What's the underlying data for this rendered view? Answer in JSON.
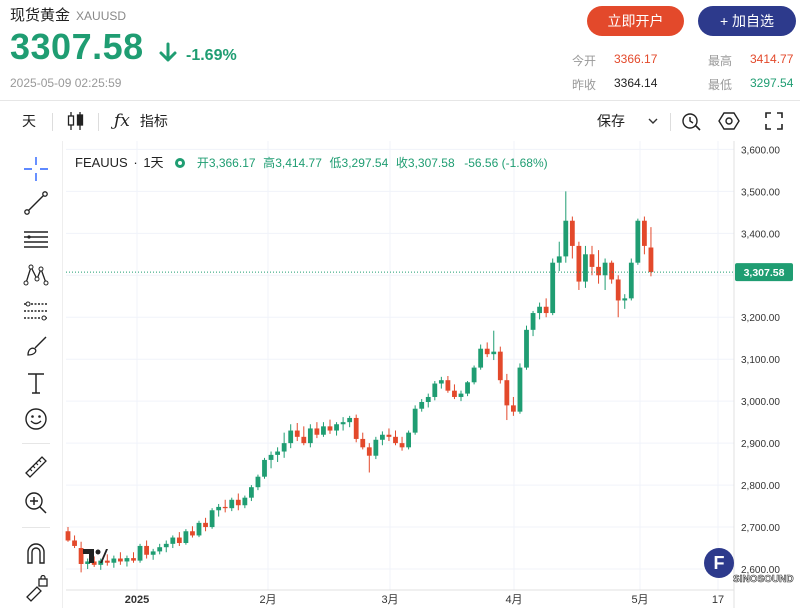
{
  "header": {
    "title": "现货黄金",
    "symbol": "XAUUSD",
    "price": "3307.58",
    "change_pct": "-1.69%",
    "timestamp": "2025-05-09 02:25:59",
    "open_account_label": "立即开户",
    "add_watchlist_label": "+ 加自选",
    "stats": {
      "today_open_label": "今开",
      "today_open": "3366.17",
      "prev_close_label": "昨收",
      "prev_close": "3364.14",
      "high_label": "最高",
      "high": "3414.77",
      "low_label": "最低",
      "low": "3297.54"
    },
    "colors": {
      "up": "#1f9d72",
      "down": "#e3492b",
      "accent": "#2d3a8c"
    }
  },
  "toolbar": {
    "interval_label": "天",
    "indicator_label": "指标",
    "save_label": "保存",
    "icons": [
      "candles-icon",
      "fx-icon",
      "chevron-down-icon",
      "replay-icon",
      "settings-icon",
      "fullscreen-icon"
    ]
  },
  "legend": {
    "symbol": "FEAUUS",
    "interval": "1天",
    "open_label": "开",
    "open": "3,366.17",
    "high_label": "高",
    "high": "3,414.77",
    "low_label": "低",
    "low": "3,297.54",
    "close_label": "收",
    "close": "3,307.58",
    "change": "-56.56 (-1.68%)"
  },
  "sidebar_icons": [
    "crosshair-icon",
    "trend-line-icon",
    "horizontal-lines-icon",
    "pattern-icon",
    "fib-icon",
    "brush-icon",
    "text-icon",
    "emoji-icon",
    "ruler-icon",
    "zoom-in-icon",
    "magnet-icon",
    "lock-draw-icon"
  ],
  "watermark": "SINOSOUND",
  "chart_data": {
    "type": "candlestick",
    "title": "",
    "last_price_label": "3,307.58",
    "ylim": [
      2550,
      3620
    ],
    "y_ticks": [
      "3,600.00",
      "3,500.00",
      "3,400.00",
      "3,300.00",
      "3,200.00",
      "3,100.00",
      "3,000.00",
      "2,900.00",
      "2,800.00",
      "2,700.00",
      "2,600.00"
    ],
    "x_ticks": [
      "2025",
      "2月",
      "3月",
      "4月",
      "5月",
      "17"
    ],
    "series": [
      {
        "o": 2690,
        "h": 2700,
        "l": 2665,
        "c": 2668
      },
      {
        "o": 2668,
        "h": 2680,
        "l": 2650,
        "c": 2655
      },
      {
        "o": 2650,
        "h": 2665,
        "l": 2592,
        "c": 2612
      },
      {
        "o": 2612,
        "h": 2625,
        "l": 2600,
        "c": 2618
      },
      {
        "o": 2618,
        "h": 2630,
        "l": 2605,
        "c": 2610
      },
      {
        "o": 2610,
        "h": 2625,
        "l": 2598,
        "c": 2620
      },
      {
        "o": 2620,
        "h": 2635,
        "l": 2608,
        "c": 2615
      },
      {
        "o": 2615,
        "h": 2632,
        "l": 2603,
        "c": 2625
      },
      {
        "o": 2625,
        "h": 2640,
        "l": 2610,
        "c": 2618
      },
      {
        "o": 2618,
        "h": 2632,
        "l": 2606,
        "c": 2626
      },
      {
        "o": 2626,
        "h": 2640,
        "l": 2615,
        "c": 2620
      },
      {
        "o": 2620,
        "h": 2660,
        "l": 2615,
        "c": 2655
      },
      {
        "o": 2655,
        "h": 2668,
        "l": 2625,
        "c": 2634
      },
      {
        "o": 2634,
        "h": 2648,
        "l": 2622,
        "c": 2642
      },
      {
        "o": 2642,
        "h": 2660,
        "l": 2635,
        "c": 2652
      },
      {
        "o": 2652,
        "h": 2668,
        "l": 2640,
        "c": 2660
      },
      {
        "o": 2660,
        "h": 2680,
        "l": 2650,
        "c": 2675
      },
      {
        "o": 2675,
        "h": 2688,
        "l": 2655,
        "c": 2662
      },
      {
        "o": 2662,
        "h": 2695,
        "l": 2658,
        "c": 2690
      },
      {
        "o": 2690,
        "h": 2702,
        "l": 2675,
        "c": 2680
      },
      {
        "o": 2680,
        "h": 2715,
        "l": 2676,
        "c": 2710
      },
      {
        "o": 2710,
        "h": 2722,
        "l": 2690,
        "c": 2700
      },
      {
        "o": 2700,
        "h": 2745,
        "l": 2696,
        "c": 2740
      },
      {
        "o": 2740,
        "h": 2755,
        "l": 2725,
        "c": 2748
      },
      {
        "o": 2748,
        "h": 2765,
        "l": 2735,
        "c": 2745
      },
      {
        "o": 2745,
        "h": 2770,
        "l": 2738,
        "c": 2765
      },
      {
        "o": 2765,
        "h": 2780,
        "l": 2740,
        "c": 2752
      },
      {
        "o": 2752,
        "h": 2775,
        "l": 2745,
        "c": 2770
      },
      {
        "o": 2770,
        "h": 2800,
        "l": 2762,
        "c": 2795
      },
      {
        "o": 2795,
        "h": 2825,
        "l": 2788,
        "c": 2820
      },
      {
        "o": 2820,
        "h": 2865,
        "l": 2815,
        "c": 2860
      },
      {
        "o": 2860,
        "h": 2880,
        "l": 2840,
        "c": 2872
      },
      {
        "o": 2872,
        "h": 2890,
        "l": 2855,
        "c": 2880
      },
      {
        "o": 2880,
        "h": 2925,
        "l": 2865,
        "c": 2900
      },
      {
        "o": 2900,
        "h": 2945,
        "l": 2888,
        "c": 2930
      },
      {
        "o": 2930,
        "h": 2948,
        "l": 2905,
        "c": 2915
      },
      {
        "o": 2915,
        "h": 2940,
        "l": 2895,
        "c": 2900
      },
      {
        "o": 2900,
        "h": 2945,
        "l": 2890,
        "c": 2935
      },
      {
        "o": 2935,
        "h": 2950,
        "l": 2912,
        "c": 2920
      },
      {
        "o": 2920,
        "h": 2950,
        "l": 2915,
        "c": 2940
      },
      {
        "o": 2940,
        "h": 2956,
        "l": 2922,
        "c": 2930
      },
      {
        "o": 2930,
        "h": 2950,
        "l": 2918,
        "c": 2945
      },
      {
        "o": 2945,
        "h": 2962,
        "l": 2930,
        "c": 2950
      },
      {
        "o": 2950,
        "h": 2965,
        "l": 2938,
        "c": 2960
      },
      {
        "o": 2960,
        "h": 2968,
        "l": 2902,
        "c": 2910
      },
      {
        "o": 2910,
        "h": 2925,
        "l": 2885,
        "c": 2890
      },
      {
        "o": 2890,
        "h": 2900,
        "l": 2830,
        "c": 2870
      },
      {
        "o": 2870,
        "h": 2915,
        "l": 2862,
        "c": 2908
      },
      {
        "o": 2908,
        "h": 2928,
        "l": 2895,
        "c": 2920
      },
      {
        "o": 2920,
        "h": 2935,
        "l": 2905,
        "c": 2915
      },
      {
        "o": 2915,
        "h": 2930,
        "l": 2895,
        "c": 2900
      },
      {
        "o": 2900,
        "h": 2915,
        "l": 2882,
        "c": 2890
      },
      {
        "o": 2890,
        "h": 2930,
        "l": 2885,
        "c": 2925
      },
      {
        "o": 2925,
        "h": 2990,
        "l": 2920,
        "c": 2982
      },
      {
        "o": 2982,
        "h": 3005,
        "l": 2975,
        "c": 2998
      },
      {
        "o": 2998,
        "h": 3018,
        "l": 2985,
        "c": 3010
      },
      {
        "o": 3010,
        "h": 3048,
        "l": 3002,
        "c": 3042
      },
      {
        "o": 3042,
        "h": 3058,
        "l": 3030,
        "c": 3050
      },
      {
        "o": 3050,
        "h": 3060,
        "l": 3020,
        "c": 3025
      },
      {
        "o": 3025,
        "h": 3040,
        "l": 3005,
        "c": 3010
      },
      {
        "o": 3010,
        "h": 3025,
        "l": 3000,
        "c": 3018
      },
      {
        "o": 3018,
        "h": 3048,
        "l": 3012,
        "c": 3045
      },
      {
        "o": 3045,
        "h": 3085,
        "l": 3040,
        "c": 3080
      },
      {
        "o": 3080,
        "h": 3135,
        "l": 3075,
        "c": 3125
      },
      {
        "o": 3125,
        "h": 3140,
        "l": 3105,
        "c": 3112
      },
      {
        "o": 3112,
        "h": 3168,
        "l": 3098,
        "c": 3118
      },
      {
        "o": 3118,
        "h": 3130,
        "l": 3042,
        "c": 3050
      },
      {
        "o": 3050,
        "h": 3065,
        "l": 2955,
        "c": 2990
      },
      {
        "o": 2990,
        "h": 3010,
        "l": 2965,
        "c": 2975
      },
      {
        "o": 2975,
        "h": 3090,
        "l": 2970,
        "c": 3080
      },
      {
        "o": 3080,
        "h": 3180,
        "l": 3075,
        "c": 3170
      },
      {
        "o": 3170,
        "h": 3215,
        "l": 3155,
        "c": 3210
      },
      {
        "o": 3210,
        "h": 3235,
        "l": 3195,
        "c": 3225
      },
      {
        "o": 3225,
        "h": 3245,
        "l": 3200,
        "c": 3210
      },
      {
        "o": 3210,
        "h": 3340,
        "l": 3205,
        "c": 3330
      },
      {
        "o": 3330,
        "h": 3380,
        "l": 3310,
        "c": 3345
      },
      {
        "o": 3345,
        "h": 3500,
        "l": 3330,
        "c": 3430
      },
      {
        "o": 3430,
        "h": 3440,
        "l": 3340,
        "c": 3370
      },
      {
        "o": 3370,
        "h": 3380,
        "l": 3265,
        "c": 3285
      },
      {
        "o": 3285,
        "h": 3370,
        "l": 3270,
        "c": 3350
      },
      {
        "o": 3350,
        "h": 3370,
        "l": 3300,
        "c": 3320
      },
      {
        "o": 3320,
        "h": 3360,
        "l": 3280,
        "c": 3300
      },
      {
        "o": 3300,
        "h": 3340,
        "l": 3265,
        "c": 3330
      },
      {
        "o": 3330,
        "h": 3335,
        "l": 3280,
        "c": 3290
      },
      {
        "o": 3290,
        "h": 3300,
        "l": 3200,
        "c": 3240
      },
      {
        "o": 3240,
        "h": 3255,
        "l": 3220,
        "c": 3245
      },
      {
        "o": 3245,
        "h": 3340,
        "l": 3240,
        "c": 3330
      },
      {
        "o": 3330,
        "h": 3435,
        "l": 3325,
        "c": 3430
      },
      {
        "o": 3430,
        "h": 3440,
        "l": 3350,
        "c": 3370
      },
      {
        "o": 3366.17,
        "h": 3414.77,
        "l": 3297.54,
        "c": 3307.58
      }
    ]
  }
}
